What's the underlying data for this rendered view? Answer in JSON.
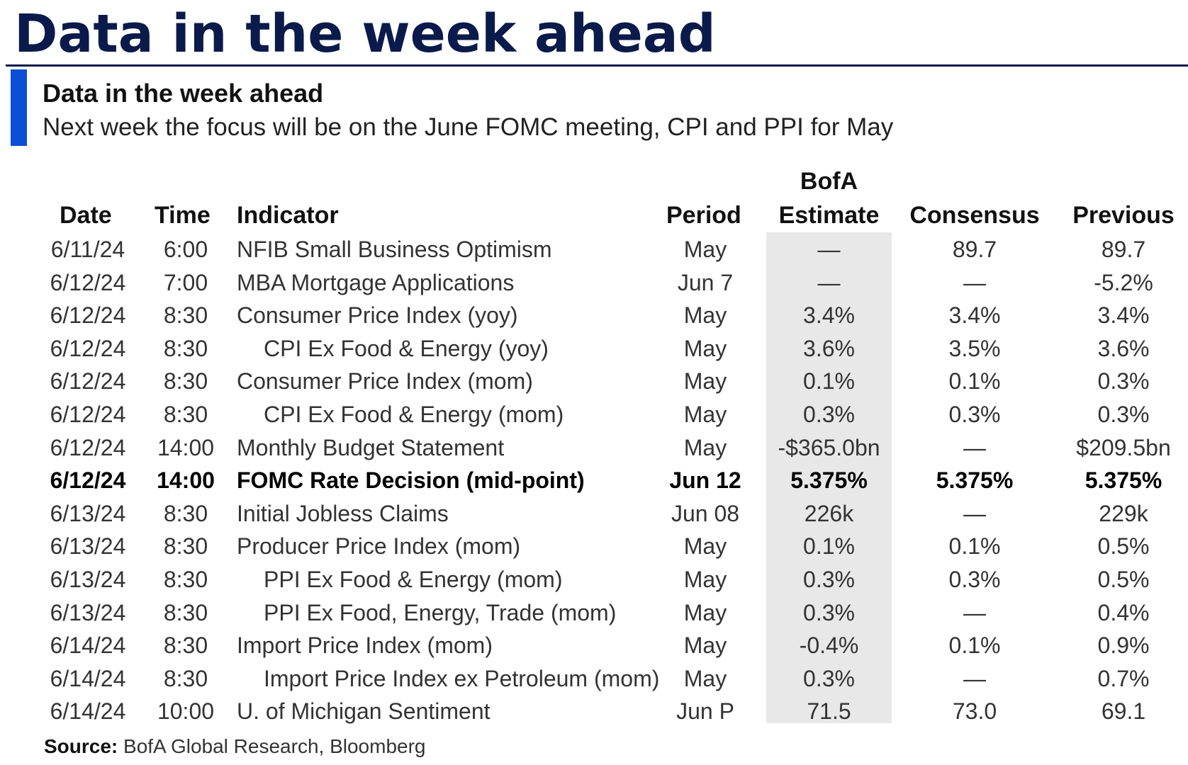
{
  "page": {
    "title": "Data in the week ahead"
  },
  "section": {
    "title": "Data in the week ahead",
    "subtitle": "Next week the focus will be on the June FOMC meeting, CPI and PPI for May"
  },
  "table": {
    "headers": {
      "date": "Date",
      "time": "Time",
      "indicator": "Indicator",
      "period": "Period",
      "bofa_line1": "BofA",
      "bofa_line2": "Estimate",
      "consensus": "Consensus",
      "previous": "Previous"
    },
    "highlight_color": "#e8e8e8",
    "rows": [
      {
        "date": "6/11/24",
        "time": "6:00",
        "indicator": "NFIB Small Business Optimism",
        "indent": false,
        "bold": false,
        "period": "May",
        "bofa": "—",
        "consensus": "89.7",
        "previous": "89.7"
      },
      {
        "date": "6/12/24",
        "time": "7:00",
        "indicator": "MBA Mortgage Applications",
        "indent": false,
        "bold": false,
        "period": "Jun 7",
        "bofa": "—",
        "consensus": "—",
        "previous": "-5.2%"
      },
      {
        "date": "6/12/24",
        "time": "8:30",
        "indicator": "Consumer Price Index (yoy)",
        "indent": false,
        "bold": false,
        "period": "May",
        "bofa": "3.4%",
        "consensus": "3.4%",
        "previous": "3.4%"
      },
      {
        "date": "6/12/24",
        "time": "8:30",
        "indicator": "CPI Ex Food & Energy (yoy)",
        "indent": true,
        "bold": false,
        "period": "May",
        "bofa": "3.6%",
        "consensus": "3.5%",
        "previous": "3.6%"
      },
      {
        "date": "6/12/24",
        "time": "8:30",
        "indicator": "Consumer Price Index (mom)",
        "indent": false,
        "bold": false,
        "period": "May",
        "bofa": "0.1%",
        "consensus": "0.1%",
        "previous": "0.3%"
      },
      {
        "date": "6/12/24",
        "time": "8:30",
        "indicator": "CPI Ex Food & Energy (mom)",
        "indent": true,
        "bold": false,
        "period": "May",
        "bofa": "0.3%",
        "consensus": "0.3%",
        "previous": "0.3%"
      },
      {
        "date": "6/12/24",
        "time": "14:00",
        "indicator": "Monthly Budget Statement",
        "indent": false,
        "bold": false,
        "period": "May",
        "bofa": "-$365.0bn",
        "consensus": "—",
        "previous": "$209.5bn"
      },
      {
        "date": "6/12/24",
        "time": "14:00",
        "indicator": "FOMC Rate Decision (mid-point)",
        "indent": false,
        "bold": true,
        "period": "Jun 12",
        "bofa": "5.375%",
        "consensus": "5.375%",
        "previous": "5.375%"
      },
      {
        "date": "6/13/24",
        "time": "8:30",
        "indicator": "Initial Jobless Claims",
        "indent": false,
        "bold": false,
        "period": "Jun 08",
        "bofa": "226k",
        "consensus": "—",
        "previous": "229k"
      },
      {
        "date": "6/13/24",
        "time": "8:30",
        "indicator": "Producer Price Index (mom)",
        "indent": false,
        "bold": false,
        "period": "May",
        "bofa": "0.1%",
        "consensus": "0.1%",
        "previous": "0.5%"
      },
      {
        "date": "6/13/24",
        "time": "8:30",
        "indicator": "PPI Ex Food & Energy (mom)",
        "indent": true,
        "bold": false,
        "period": "May",
        "bofa": "0.3%",
        "consensus": "0.3%",
        "previous": "0.5%"
      },
      {
        "date": "6/13/24",
        "time": "8:30",
        "indicator": "PPI Ex Food, Energy, Trade (mom)",
        "indent": true,
        "bold": false,
        "period": "May",
        "bofa": "0.3%",
        "consensus": "—",
        "previous": "0.4%"
      },
      {
        "date": "6/14/24",
        "time": "8:30",
        "indicator": "Import Price Index (mom)",
        "indent": false,
        "bold": false,
        "period": "May",
        "bofa": "-0.4%",
        "consensus": "0.1%",
        "previous": "0.9%"
      },
      {
        "date": "6/14/24",
        "time": "8:30",
        "indicator": "Import Price Index ex Petroleum (mom)",
        "indent": true,
        "bold": false,
        "period": "May",
        "bofa": "0.3%",
        "consensus": "—",
        "previous": "0.7%"
      },
      {
        "date": "6/14/24",
        "time": "10:00",
        "indicator": "U. of Michigan Sentiment",
        "indent": false,
        "bold": false,
        "period": "Jun P",
        "bofa": "71.5",
        "consensus": "73.0",
        "previous": "69.1"
      }
    ]
  },
  "source": {
    "label": "Source:",
    "text": " BofA Global Research, Bloomberg"
  }
}
